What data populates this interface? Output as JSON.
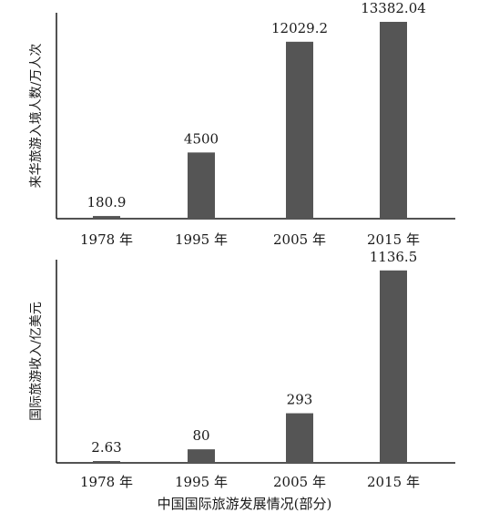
{
  "chart_data": [
    {
      "type": "bar",
      "categories": [
        "1978 年",
        "1995 年",
        "2005 年",
        "2015 年"
      ],
      "values": [
        180.9,
        4500,
        12029.2,
        13382.04
      ],
      "value_labels": [
        "180.9",
        "4500",
        "12029.2",
        "13382.04"
      ],
      "ylabel": "来华旅游入境人数/万人次",
      "ylim": [
        0,
        14000
      ],
      "grid": false,
      "bar_color": "#555555"
    },
    {
      "type": "bar",
      "categories": [
        "1978 年",
        "1995 年",
        "2005 年",
        "2015 年"
      ],
      "values": [
        2.63,
        80,
        293,
        1136.5
      ],
      "value_labels": [
        "2.63",
        "80",
        "293",
        "1136.5"
      ],
      "ylabel": "国际旅游收入/亿美元",
      "ylim": [
        0,
        1200
      ],
      "grid": false,
      "bar_color": "#555555"
    }
  ],
  "caption": "中国国际旅游发展情况(部分)"
}
